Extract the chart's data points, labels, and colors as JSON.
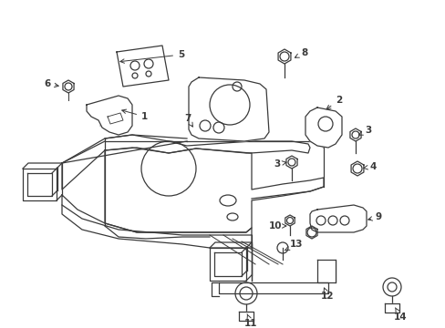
{
  "bg_color": "#ffffff",
  "line_color": "#3a3a3a",
  "lw": 0.9,
  "label_fontsize": 7.5,
  "figsize": [
    4.89,
    3.6
  ],
  "dpi": 100
}
